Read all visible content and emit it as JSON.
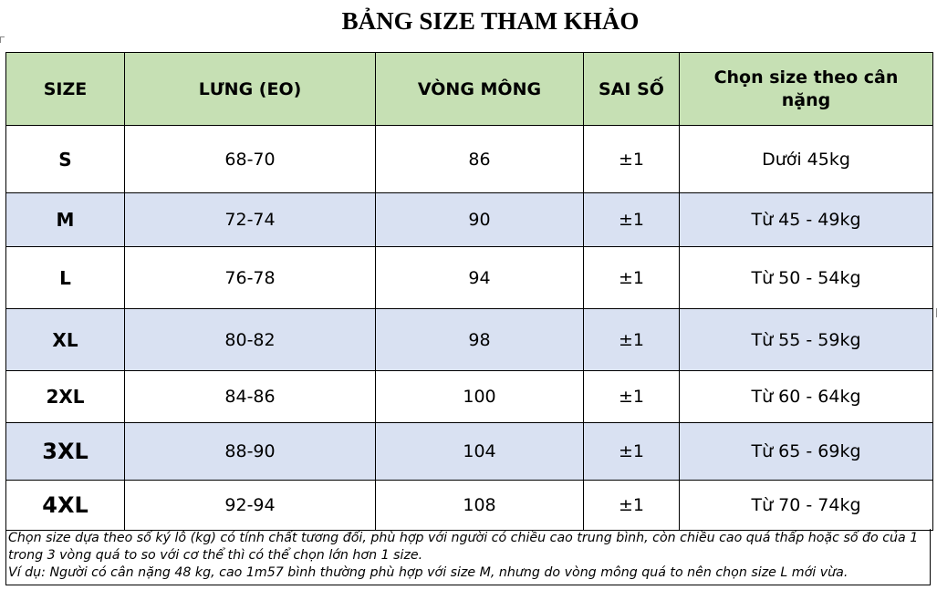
{
  "title": "BẢNG SIZE THAM KHẢO",
  "table": {
    "headers": [
      "SIZE",
      "LƯNG (EO)",
      "VÒNG MÔNG",
      "SAI SỐ",
      "Chọn size theo cân nặng"
    ],
    "rows": [
      {
        "size": "S",
        "waist": "68-70",
        "hip": "86",
        "tolerance": "±1",
        "weight": "Dưới 45kg"
      },
      {
        "size": "M",
        "waist": "72-74",
        "hip": "90",
        "tolerance": "±1",
        "weight": "Từ 45 - 49kg"
      },
      {
        "size": "L",
        "waist": "76-78",
        "hip": "94",
        "tolerance": "±1",
        "weight": "Từ 50 - 54kg"
      },
      {
        "size": "XL",
        "waist": "80-82",
        "hip": "98",
        "tolerance": "±1",
        "weight": "Từ 55 - 59kg"
      },
      {
        "size": "2XL",
        "waist": "84-86",
        "hip": "100",
        "tolerance": "±1",
        "weight": "Từ 60 - 64kg"
      },
      {
        "size": "3XL",
        "waist": "88-90",
        "hip": "104",
        "tolerance": "±1",
        "weight": "Từ 65 - 69kg"
      },
      {
        "size": "4XL",
        "waist": "92-94",
        "hip": "108",
        "tolerance": "±1",
        "weight": "Từ 70 - 74kg"
      }
    ]
  },
  "note": {
    "line1": "Chọn size dựa theo số ký lô (kg) có tính chất tương đối, phù hợp với người có chiều cao trung bình, còn chiều cao quá thấp hoặc số đo của 1 trong 3 vòng quá to so với cơ thể thì có thể chọn lớn hơn 1 size.",
    "line2": "Ví dụ: Người có cân nặng 48 kg, cao 1m57 bình thường phù hợp với size M, nhưng do vòng mông quá to nên chọn size L mới vừa."
  }
}
